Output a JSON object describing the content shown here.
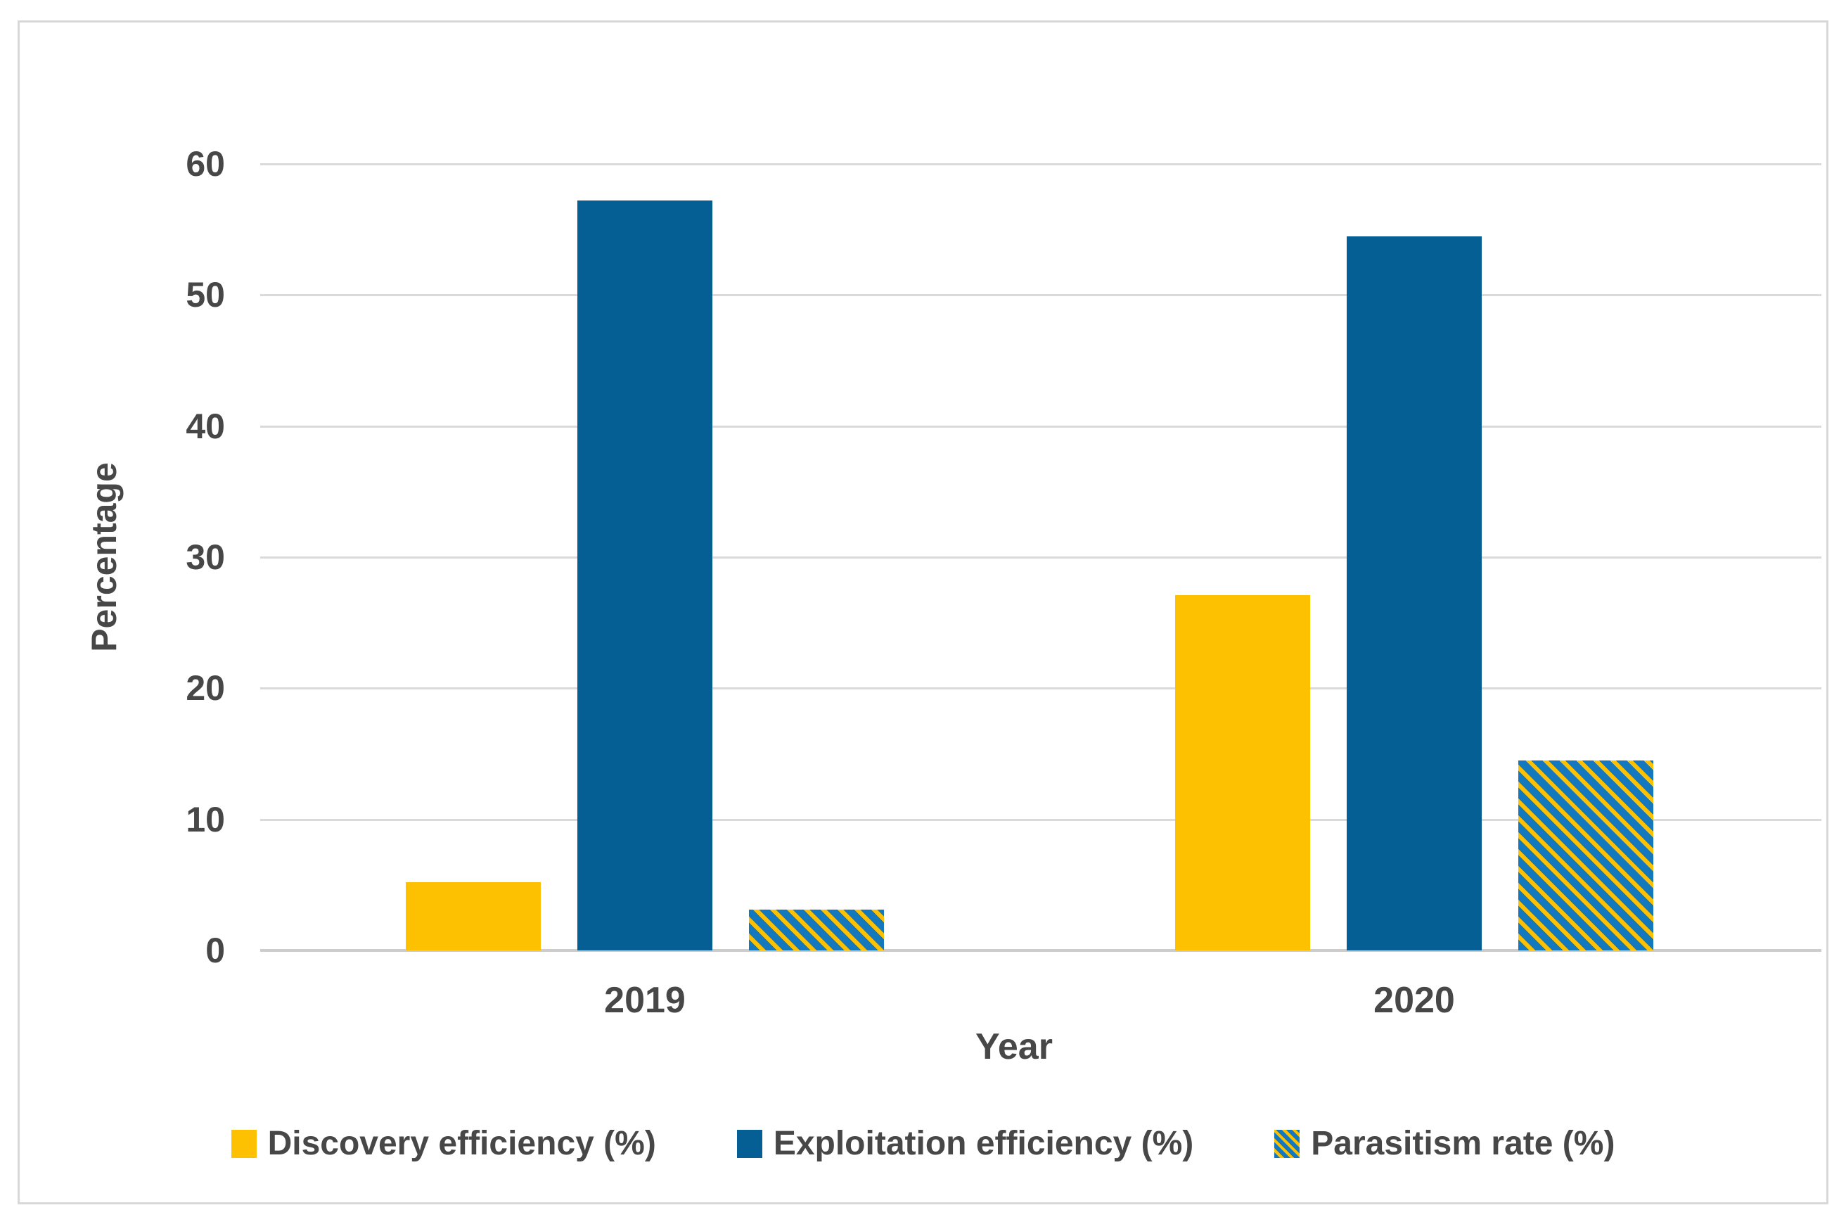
{
  "figure": {
    "background": "#ffffff",
    "border_color": "#d8d8d8"
  },
  "chart_data": {
    "type": "bar",
    "title": "",
    "xlabel": "Year",
    "ylabel": "Percentage",
    "categories": [
      "2019",
      "2020"
    ],
    "series": [
      {
        "name": "Discovery efficiency (%)",
        "values": [
          5.2,
          27.1
        ],
        "color": "#fec102",
        "pattern": "solid"
      },
      {
        "name": "Exploitation efficiency (%)",
        "values": [
          57.2,
          54.5
        ],
        "color": "#055e94",
        "pattern": "solid"
      },
      {
        "name": "Parasitism rate (%)",
        "values": [
          3.1,
          14.5
        ],
        "color": "#1478be",
        "pattern": "diagonal-stripes",
        "stripe_color": "#fec102"
      }
    ],
    "ylim": [
      0,
      60
    ],
    "yticks": [
      0,
      10,
      20,
      30,
      40,
      50,
      60
    ],
    "grid": true,
    "legend_position": "bottom",
    "colors": {
      "gridline": "#dadada",
      "axis_line": "#cccccc",
      "text": "#474747"
    }
  }
}
